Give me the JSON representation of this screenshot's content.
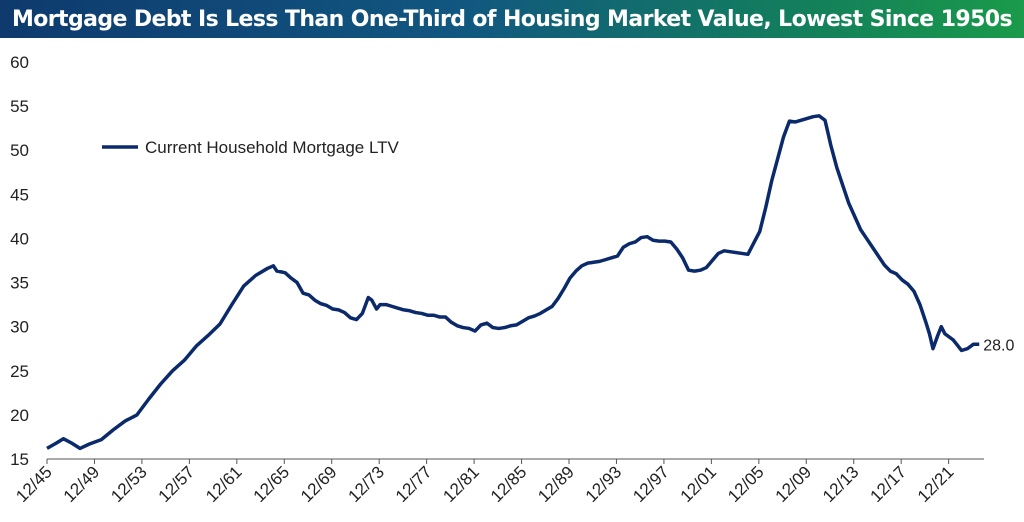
{
  "title": "Mortgage Debt Is Less Than One-Third of Housing Market Value, Lowest Since 1950s",
  "colors": {
    "line": "#0b2a6b",
    "axis": "#555555",
    "title_bg_start": "#0e3a6e",
    "title_bg_end": "#1a9a4a"
  },
  "chart_data": {
    "type": "line",
    "title": "Mortgage Debt Is Less Than One-Third of Housing Market Value, Lowest Since 1950s",
    "xlabel": "",
    "ylabel": "",
    "ylim": [
      15,
      60
    ],
    "xlim": [
      1945.92,
      2024.9
    ],
    "yticks": [
      15,
      20,
      25,
      30,
      35,
      40,
      45,
      50,
      55,
      60
    ],
    "xtick_labels": [
      "12/45",
      "12/49",
      "12/53",
      "12/57",
      "12/61",
      "12/65",
      "12/69",
      "12/73",
      "12/77",
      "12/81",
      "12/85",
      "12/89",
      "12/93",
      "12/97",
      "12/01",
      "12/05",
      "12/09",
      "12/13",
      "12/17",
      "12/21"
    ],
    "grid": false,
    "legend_position": "top-left",
    "end_label": "28.0",
    "series": [
      {
        "name": "Current Household Mortgage LTV",
        "color": "#0b2a6b",
        "x": [
          1945.92,
          1946.7,
          1947.3,
          1948.0,
          1948.7,
          1949.5,
          1950.5,
          1951.5,
          1952.5,
          1953.5,
          1954.5,
          1955.5,
          1956.5,
          1957.5,
          1958.5,
          1959.5,
          1960.5,
          1961.5,
          1962.5,
          1963.5,
          1964.5,
          1965.0,
          1965.3,
          1965.7,
          1966.0,
          1966.5,
          1967.0,
          1967.5,
          1968.0,
          1968.5,
          1969.0,
          1969.5,
          1970.0,
          1970.5,
          1971.0,
          1971.5,
          1972.0,
          1972.5,
          1973.0,
          1973.3,
          1973.7,
          1974.0,
          1974.5,
          1975.0,
          1975.5,
          1976.0,
          1976.5,
          1977.0,
          1977.5,
          1978.0,
          1978.5,
          1979.0,
          1979.5,
          1980.0,
          1980.5,
          1981.0,
          1981.5,
          1982.0,
          1982.5,
          1983.0,
          1983.5,
          1984.0,
          1984.5,
          1985.0,
          1985.5,
          1986.0,
          1986.5,
          1987.0,
          1987.5,
          1988.0,
          1988.5,
          1989.0,
          1989.5,
          1990.0,
          1990.5,
          1991.0,
          1991.5,
          1992.0,
          1992.5,
          1993.0,
          1993.5,
          1994.0,
          1994.5,
          1995.0,
          1995.5,
          1996.0,
          1996.5,
          1997.0,
          1997.5,
          1998.0,
          1998.5,
          1999.0,
          1999.5,
          2000.0,
          2000.5,
          2001.0,
          2001.5,
          2002.0,
          2002.5,
          2003.0,
          2003.5,
          2004.0,
          2004.5,
          2005.0,
          2005.5,
          2006.0,
          2006.5,
          2007.0,
          2007.5,
          2008.0,
          2008.5,
          2009.0,
          2009.5,
          2010.0,
          2010.5,
          2011.0,
          2011.5,
          2012.0,
          2012.5,
          2013.0,
          2013.5,
          2014.0,
          2014.5,
          2015.0,
          2015.5,
          2016.0,
          2016.5,
          2017.0,
          2017.5,
          2018.0,
          2018.5,
          2019.0,
          2019.5,
          2020.0,
          2020.3,
          2020.6,
          2021.0,
          2021.3,
          2021.6,
          2022.0,
          2022.3,
          2022.6,
          2023.0,
          2023.5,
          2024.0,
          2024.5
        ],
        "values": [
          16.2,
          16.8,
          17.3,
          16.8,
          16.2,
          16.7,
          17.2,
          18.3,
          19.3,
          20.0,
          21.8,
          23.5,
          25.0,
          26.2,
          27.8,
          29.0,
          30.3,
          32.5,
          34.6,
          35.8,
          36.6,
          36.9,
          36.3,
          36.2,
          36.1,
          35.5,
          35.0,
          33.8,
          33.6,
          33.0,
          32.6,
          32.4,
          32.0,
          31.9,
          31.6,
          31.0,
          30.8,
          31.5,
          33.3,
          33.0,
          32.0,
          32.5,
          32.5,
          32.3,
          32.1,
          31.9,
          31.8,
          31.6,
          31.5,
          31.3,
          31.3,
          31.1,
          31.1,
          30.5,
          30.1,
          29.9,
          29.8,
          29.5,
          30.2,
          30.4,
          29.9,
          29.8,
          29.9,
          30.1,
          30.2,
          30.6,
          31.0,
          31.2,
          31.5,
          31.9,
          32.3,
          33.2,
          34.3,
          35.5,
          36.3,
          36.9,
          37.2,
          37.3,
          37.4,
          37.6,
          37.8,
          38.0,
          39.0,
          39.4,
          39.6,
          40.1,
          40.2,
          39.8,
          39.7,
          39.7,
          39.6,
          38.8,
          37.8,
          36.4,
          36.3,
          36.4,
          36.7,
          37.5,
          38.3,
          38.6,
          38.5,
          38.4,
          38.3,
          38.2,
          39.5,
          40.8,
          43.5,
          46.5,
          49.0,
          51.5,
          53.3,
          53.2,
          53.4,
          53.6,
          53.8,
          53.9,
          53.4,
          50.5,
          48.0,
          46.0,
          44.0,
          42.5,
          41.0,
          40.0,
          39.0,
          38.0,
          37.0,
          36.3,
          36.0,
          35.3,
          34.8,
          34.0,
          32.5,
          30.5,
          29.2,
          27.5,
          29.0,
          30.0,
          29.2,
          28.8,
          28.5,
          28.0,
          27.3,
          27.5,
          28.0,
          28.0
        ]
      }
    ]
  }
}
